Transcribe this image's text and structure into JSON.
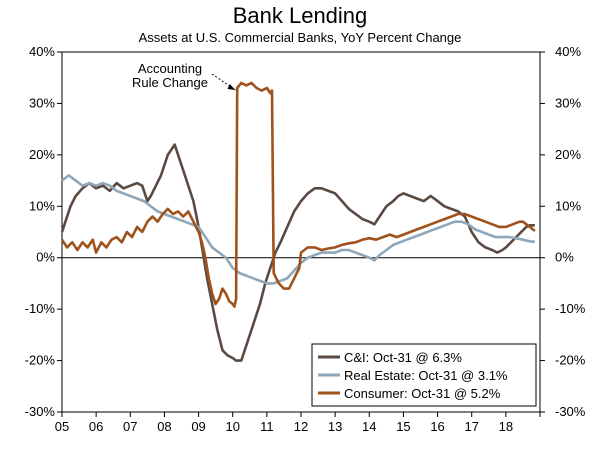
{
  "chart_data": {
    "type": "line",
    "title": "Bank Lending",
    "subtitle": "Assets at U.S. Commercial Banks, YoY Percent Change",
    "xlabel": "",
    "ylabel": "",
    "x_ticks": [
      "05",
      "06",
      "07",
      "08",
      "09",
      "10",
      "11",
      "12",
      "13",
      "14",
      "15",
      "16",
      "17",
      "18"
    ],
    "x_range": [
      2005.0,
      2019.0
    ],
    "ylim": [
      -30,
      40
    ],
    "y_ticks": [
      40,
      30,
      20,
      10,
      0,
      -10,
      -20,
      -30
    ],
    "y_tick_labels": [
      "40%",
      "30%",
      "20%",
      "10%",
      "0%",
      "-10%",
      "-20%",
      "-30%"
    ],
    "grid": false,
    "legend_position": "bottom-right",
    "annotation": {
      "lines": [
        "Accounting",
        "Rule Change"
      ],
      "points_to": [
        2010.2,
        33
      ]
    },
    "series": [
      {
        "name": "C&I: Oct-31 @ 6.3%",
        "color": "#5a4a42",
        "points": [
          [
            2005.0,
            5
          ],
          [
            2005.1,
            7
          ],
          [
            2005.25,
            10
          ],
          [
            2005.4,
            12
          ],
          [
            2005.6,
            13.5
          ],
          [
            2005.8,
            14.5
          ],
          [
            2006.0,
            13.5
          ],
          [
            2006.2,
            14
          ],
          [
            2006.4,
            13
          ],
          [
            2006.6,
            14.5
          ],
          [
            2006.8,
            13.5
          ],
          [
            2007.0,
            14
          ],
          [
            2007.2,
            14.5
          ],
          [
            2007.35,
            14
          ],
          [
            2007.5,
            11
          ],
          [
            2007.6,
            12
          ],
          [
            2007.75,
            14
          ],
          [
            2007.9,
            16
          ],
          [
            2008.0,
            18
          ],
          [
            2008.1,
            20
          ],
          [
            2008.2,
            21
          ],
          [
            2008.3,
            22
          ],
          [
            2008.4,
            20
          ],
          [
            2008.5,
            18
          ],
          [
            2008.6,
            16
          ],
          [
            2008.75,
            13
          ],
          [
            2008.85,
            11
          ],
          [
            2009.0,
            6
          ],
          [
            2009.1,
            2
          ],
          [
            2009.25,
            -4
          ],
          [
            2009.4,
            -9
          ],
          [
            2009.55,
            -14
          ],
          [
            2009.7,
            -18
          ],
          [
            2009.85,
            -19
          ],
          [
            2010.0,
            -19.5
          ],
          [
            2010.1,
            -20
          ],
          [
            2010.25,
            -20
          ],
          [
            2010.35,
            -18
          ],
          [
            2010.5,
            -15
          ],
          [
            2010.65,
            -12
          ],
          [
            2010.8,
            -9
          ],
          [
            2010.95,
            -5
          ],
          [
            2011.1,
            -2
          ],
          [
            2011.25,
            1
          ],
          [
            2011.4,
            3
          ],
          [
            2011.6,
            6
          ],
          [
            2011.8,
            9
          ],
          [
            2012.0,
            11
          ],
          [
            2012.2,
            12.5
          ],
          [
            2012.4,
            13.5
          ],
          [
            2012.6,
            13.5
          ],
          [
            2012.8,
            13
          ],
          [
            2013.0,
            12.5
          ],
          [
            2013.2,
            11
          ],
          [
            2013.4,
            9.5
          ],
          [
            2013.6,
            8.5
          ],
          [
            2013.8,
            7.5
          ],
          [
            2014.0,
            7
          ],
          [
            2014.15,
            6.5
          ],
          [
            2014.3,
            8
          ],
          [
            2014.5,
            10
          ],
          [
            2014.7,
            11
          ],
          [
            2014.85,
            12
          ],
          [
            2015.0,
            12.5
          ],
          [
            2015.2,
            12
          ],
          [
            2015.4,
            11.5
          ],
          [
            2015.6,
            11
          ],
          [
            2015.8,
            12
          ],
          [
            2016.0,
            11
          ],
          [
            2016.2,
            10
          ],
          [
            2016.4,
            9.5
          ],
          [
            2016.6,
            9
          ],
          [
            2016.8,
            8
          ],
          [
            2017.0,
            5
          ],
          [
            2017.2,
            3
          ],
          [
            2017.4,
            2
          ],
          [
            2017.6,
            1.5
          ],
          [
            2017.75,
            1
          ],
          [
            2017.9,
            1.5
          ],
          [
            2018.0,
            2
          ],
          [
            2018.15,
            3
          ],
          [
            2018.3,
            4
          ],
          [
            2018.45,
            5
          ],
          [
            2018.6,
            6
          ],
          [
            2018.7,
            6.3
          ],
          [
            2018.85,
            6.3
          ]
        ]
      },
      {
        "name": "Real Estate: Oct-31 @ 3.1%",
        "color": "#8fa7b8",
        "points": [
          [
            2005.0,
            15
          ],
          [
            2005.2,
            16
          ],
          [
            2005.4,
            15
          ],
          [
            2005.6,
            14
          ],
          [
            2005.8,
            14.5
          ],
          [
            2006.0,
            14
          ],
          [
            2006.2,
            14.5
          ],
          [
            2006.4,
            14
          ],
          [
            2006.6,
            13
          ],
          [
            2006.8,
            12.5
          ],
          [
            2007.0,
            12
          ],
          [
            2007.2,
            11.5
          ],
          [
            2007.4,
            11
          ],
          [
            2007.6,
            10
          ],
          [
            2007.8,
            9
          ],
          [
            2008.0,
            8.5
          ],
          [
            2008.2,
            8
          ],
          [
            2008.4,
            7.5
          ],
          [
            2008.6,
            7
          ],
          [
            2008.8,
            6.5
          ],
          [
            2009.0,
            6
          ],
          [
            2009.2,
            4
          ],
          [
            2009.4,
            2
          ],
          [
            2009.6,
            1
          ],
          [
            2009.8,
            0
          ],
          [
            2010.0,
            -2
          ],
          [
            2010.2,
            -3
          ],
          [
            2010.4,
            -3.5
          ],
          [
            2010.6,
            -4
          ],
          [
            2010.8,
            -4.5
          ],
          [
            2011.0,
            -5
          ],
          [
            2011.2,
            -5
          ],
          [
            2011.4,
            -4.5
          ],
          [
            2011.6,
            -4
          ],
          [
            2011.8,
            -2.5
          ],
          [
            2012.0,
            -1
          ],
          [
            2012.2,
            0
          ],
          [
            2012.4,
            0.5
          ],
          [
            2012.6,
            1
          ],
          [
            2012.8,
            1
          ],
          [
            2013.0,
            1
          ],
          [
            2013.2,
            1.5
          ],
          [
            2013.4,
            1.5
          ],
          [
            2013.6,
            1
          ],
          [
            2013.8,
            0.5
          ],
          [
            2014.0,
            0
          ],
          [
            2014.15,
            -0.5
          ],
          [
            2014.3,
            0.5
          ],
          [
            2014.5,
            1.5
          ],
          [
            2014.7,
            2.5
          ],
          [
            2014.9,
            3
          ],
          [
            2015.1,
            3.5
          ],
          [
            2015.3,
            4
          ],
          [
            2015.5,
            4.5
          ],
          [
            2015.7,
            5
          ],
          [
            2015.9,
            5.5
          ],
          [
            2016.1,
            6
          ],
          [
            2016.3,
            6.5
          ],
          [
            2016.5,
            7
          ],
          [
            2016.7,
            7
          ],
          [
            2016.9,
            6.5
          ],
          [
            2017.1,
            5.5
          ],
          [
            2017.3,
            5
          ],
          [
            2017.5,
            4.5
          ],
          [
            2017.7,
            4
          ],
          [
            2017.9,
            4
          ],
          [
            2018.1,
            4
          ],
          [
            2018.3,
            3.8
          ],
          [
            2018.5,
            3.5
          ],
          [
            2018.7,
            3.2
          ],
          [
            2018.85,
            3.1
          ]
        ]
      },
      {
        "name": "Consumer: Oct-31 @ 5.2%",
        "color": "#a0521d",
        "points": [
          [
            2005.0,
            3.5
          ],
          [
            2005.15,
            2
          ],
          [
            2005.3,
            3
          ],
          [
            2005.45,
            1.5
          ],
          [
            2005.6,
            3
          ],
          [
            2005.75,
            2
          ],
          [
            2005.9,
            3.5
          ],
          [
            2006.0,
            1
          ],
          [
            2006.15,
            3
          ],
          [
            2006.3,
            2
          ],
          [
            2006.45,
            3.5
          ],
          [
            2006.6,
            4
          ],
          [
            2006.75,
            3
          ],
          [
            2006.9,
            5
          ],
          [
            2007.05,
            4
          ],
          [
            2007.2,
            6
          ],
          [
            2007.35,
            5
          ],
          [
            2007.5,
            7
          ],
          [
            2007.65,
            8
          ],
          [
            2007.8,
            7
          ],
          [
            2007.95,
            8.5
          ],
          [
            2008.1,
            9.5
          ],
          [
            2008.25,
            8.5
          ],
          [
            2008.4,
            9
          ],
          [
            2008.55,
            8
          ],
          [
            2008.7,
            9
          ],
          [
            2008.85,
            7
          ],
          [
            2009.0,
            5
          ],
          [
            2009.1,
            3
          ],
          [
            2009.2,
            0
          ],
          [
            2009.3,
            -4
          ],
          [
            2009.4,
            -7
          ],
          [
            2009.5,
            -9
          ],
          [
            2009.6,
            -8
          ],
          [
            2009.7,
            -6
          ],
          [
            2009.8,
            -7
          ],
          [
            2009.9,
            -8.5
          ],
          [
            2010.0,
            -9
          ],
          [
            2010.05,
            -9.5
          ],
          [
            2010.1,
            -8
          ],
          [
            2010.13,
            33
          ],
          [
            2010.25,
            34
          ],
          [
            2010.4,
            33.5
          ],
          [
            2010.55,
            34
          ],
          [
            2010.7,
            33
          ],
          [
            2010.85,
            32.5
          ],
          [
            2011.0,
            33
          ],
          [
            2011.1,
            32
          ],
          [
            2011.15,
            32.5
          ],
          [
            2011.2,
            -3
          ],
          [
            2011.35,
            -5
          ],
          [
            2011.5,
            -6
          ],
          [
            2011.65,
            -6
          ],
          [
            2011.8,
            -4
          ],
          [
            2011.95,
            -2
          ],
          [
            2012.0,
            1
          ],
          [
            2012.2,
            2
          ],
          [
            2012.4,
            2
          ],
          [
            2012.6,
            1.5
          ],
          [
            2012.8,
            1.8
          ],
          [
            2013.0,
            2
          ],
          [
            2013.2,
            2.5
          ],
          [
            2013.4,
            2.8
          ],
          [
            2013.6,
            3
          ],
          [
            2013.8,
            3.5
          ],
          [
            2014.0,
            3.8
          ],
          [
            2014.2,
            3.5
          ],
          [
            2014.4,
            4
          ],
          [
            2014.6,
            4.5
          ],
          [
            2014.8,
            4
          ],
          [
            2015.0,
            4.5
          ],
          [
            2015.2,
            5
          ],
          [
            2015.4,
            5.5
          ],
          [
            2015.6,
            6
          ],
          [
            2015.8,
            6.5
          ],
          [
            2016.0,
            7
          ],
          [
            2016.2,
            7.5
          ],
          [
            2016.4,
            8
          ],
          [
            2016.6,
            8.5
          ],
          [
            2016.8,
            8.5
          ],
          [
            2017.0,
            8
          ],
          [
            2017.2,
            7.5
          ],
          [
            2017.4,
            7
          ],
          [
            2017.6,
            6.5
          ],
          [
            2017.8,
            6
          ],
          [
            2018.0,
            6
          ],
          [
            2018.2,
            6.5
          ],
          [
            2018.4,
            7
          ],
          [
            2018.5,
            7
          ],
          [
            2018.6,
            6.5
          ],
          [
            2018.7,
            6
          ],
          [
            2018.85,
            5.2
          ]
        ]
      }
    ]
  }
}
